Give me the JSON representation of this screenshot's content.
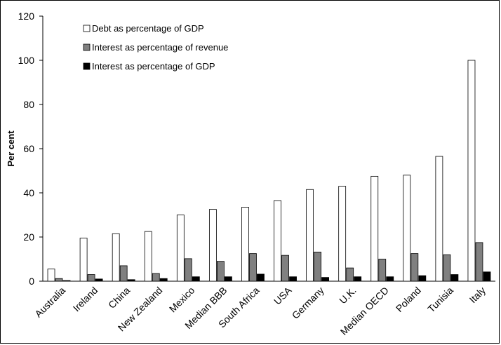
{
  "chart_data": {
    "type": "bar",
    "ylabel": "Per cent",
    "xlabel": "",
    "ylim": [
      0,
      120
    ],
    "yticks": [
      "0",
      "20",
      "40",
      "60",
      "80",
      "100",
      "120"
    ],
    "legend_position": "top-left",
    "grid": false,
    "categories": [
      "Australia",
      "Ireland",
      "China",
      "New Zealand",
      "Mexico",
      "Median BBB",
      "South Africa",
      "USA",
      "Germany",
      "U.K.",
      "Median OECD",
      "Poland",
      "Tunisia",
      "Italy"
    ],
    "series": [
      {
        "name": "Debt as percentage of GDP",
        "color": "#ffffff",
        "values": [
          5.5,
          19.5,
          21.5,
          22.5,
          30,
          32.5,
          33.5,
          36.5,
          41.5,
          43,
          47.5,
          48,
          56.5,
          100
        ]
      },
      {
        "name": "Interest as percentage of revenue",
        "color": "#808080",
        "values": [
          1.2,
          3,
          7,
          3.5,
          10.2,
          9,
          12.5,
          11.7,
          13.2,
          6,
          10,
          12.5,
          12,
          17.5
        ]
      },
      {
        "name": "Interest as percentage of GDP",
        "color": "#000000",
        "values": [
          0.3,
          1,
          0.7,
          1.2,
          2,
          2,
          3.2,
          2,
          1.7,
          2,
          2,
          2.5,
          3,
          4.2
        ]
      }
    ]
  }
}
